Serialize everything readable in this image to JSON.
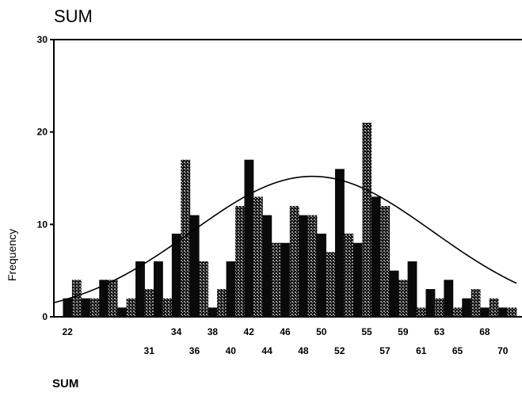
{
  "chart_data": {
    "type": "bar",
    "title": "SUM",
    "xlabel": "SUM",
    "ylabel": "Frequency",
    "ylim": [
      0,
      30
    ],
    "yticks": [
      0,
      10,
      20,
      30
    ],
    "xlim": [
      20.5,
      71.5
    ],
    "xticks_top": [
      22,
      34,
      38,
      42,
      46,
      50,
      55,
      59,
      63,
      68
    ],
    "xticks_bottom": [
      31,
      36,
      40,
      44,
      48,
      52,
      57,
      61,
      65,
      70
    ],
    "categories": [
      22,
      23,
      24,
      25,
      26,
      27,
      28,
      29,
      30,
      31,
      32,
      33,
      34,
      35,
      36,
      37,
      38,
      39,
      40,
      41,
      42,
      43,
      44,
      45,
      46,
      47,
      48,
      49,
      50,
      51,
      52,
      53,
      54,
      55,
      56,
      57,
      58,
      59,
      60,
      61,
      62,
      63,
      64,
      65,
      66,
      67,
      68,
      69,
      70,
      71
    ],
    "values": [
      2,
      4,
      2,
      2,
      4,
      4,
      1,
      2,
      6,
      3,
      6,
      2,
      9,
      17,
      11,
      6,
      1,
      3,
      6,
      12,
      17,
      13,
      11,
      8,
      8,
      12,
      11,
      11,
      9,
      7,
      16,
      9,
      8,
      21,
      13,
      12,
      5,
      4,
      6,
      1,
      3,
      2,
      4,
      1,
      2,
      3,
      1,
      2,
      1,
      1
    ],
    "normal_curve": {
      "peak_x": 49,
      "peak_y": 15.2,
      "sd": 13.3
    },
    "grid": false,
    "colors": {
      "bar_dark": "#0a0a0a",
      "bar_light": "#7a7a7a",
      "curve": "#000000"
    }
  }
}
